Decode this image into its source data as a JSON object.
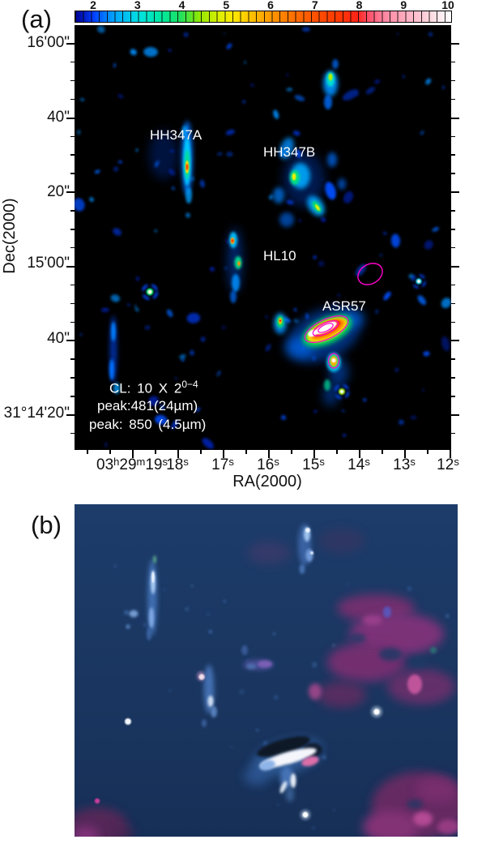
{
  "panel_a": {
    "label": "(a)",
    "colorbar_ticks": [
      "2",
      "3",
      "4",
      "5",
      "6",
      "7",
      "8",
      "9",
      "10"
    ],
    "y_axis": {
      "label": "Dec(2000)",
      "ticks": [
        "16'00\"",
        "40\"",
        "20\"",
        "15'00\"",
        "40\"",
        "31°14'20\""
      ]
    },
    "x_axis": {
      "label": "RA(2000)",
      "ticks": [
        {
          "parts": [
            [
              "03",
              "h"
            ],
            [
              "29",
              "m"
            ],
            [
              "19",
              "s"
            ]
          ]
        },
        {
          "parts": [
            [
              "18",
              "s"
            ]
          ]
        },
        {
          "parts": [
            [
              "17",
              "s"
            ]
          ]
        },
        {
          "parts": [
            [
              "16",
              "s"
            ]
          ]
        },
        {
          "parts": [
            [
              "15",
              "s"
            ]
          ]
        },
        {
          "parts": [
            [
              "14",
              "s"
            ]
          ]
        },
        {
          "parts": [
            [
              "13",
              "s"
            ]
          ]
        },
        {
          "parts": [
            [
              "12",
              "s"
            ]
          ]
        }
      ]
    },
    "annotations": {
      "hh347a": "HH347A",
      "hh347b": "HH347B",
      "hl10": "HL10",
      "asr57": "ASR57"
    },
    "legend": {
      "cl_base": "CL: 10 X 2",
      "cl_sup": "0−4",
      "peak_24": "peak:481(24µm)",
      "peak_45": "peak: 850 (4.5µm)"
    }
  },
  "panel_b": {
    "label": "(b)"
  },
  "colors": {
    "plot_background": "#000000",
    "panel_b_background": "#1c3a66",
    "annotation_text": "#ffffff",
    "contour_magenta": "#ff00cc",
    "colorbar_low": "#000090",
    "colorbar_high": "#ffffff"
  }
}
